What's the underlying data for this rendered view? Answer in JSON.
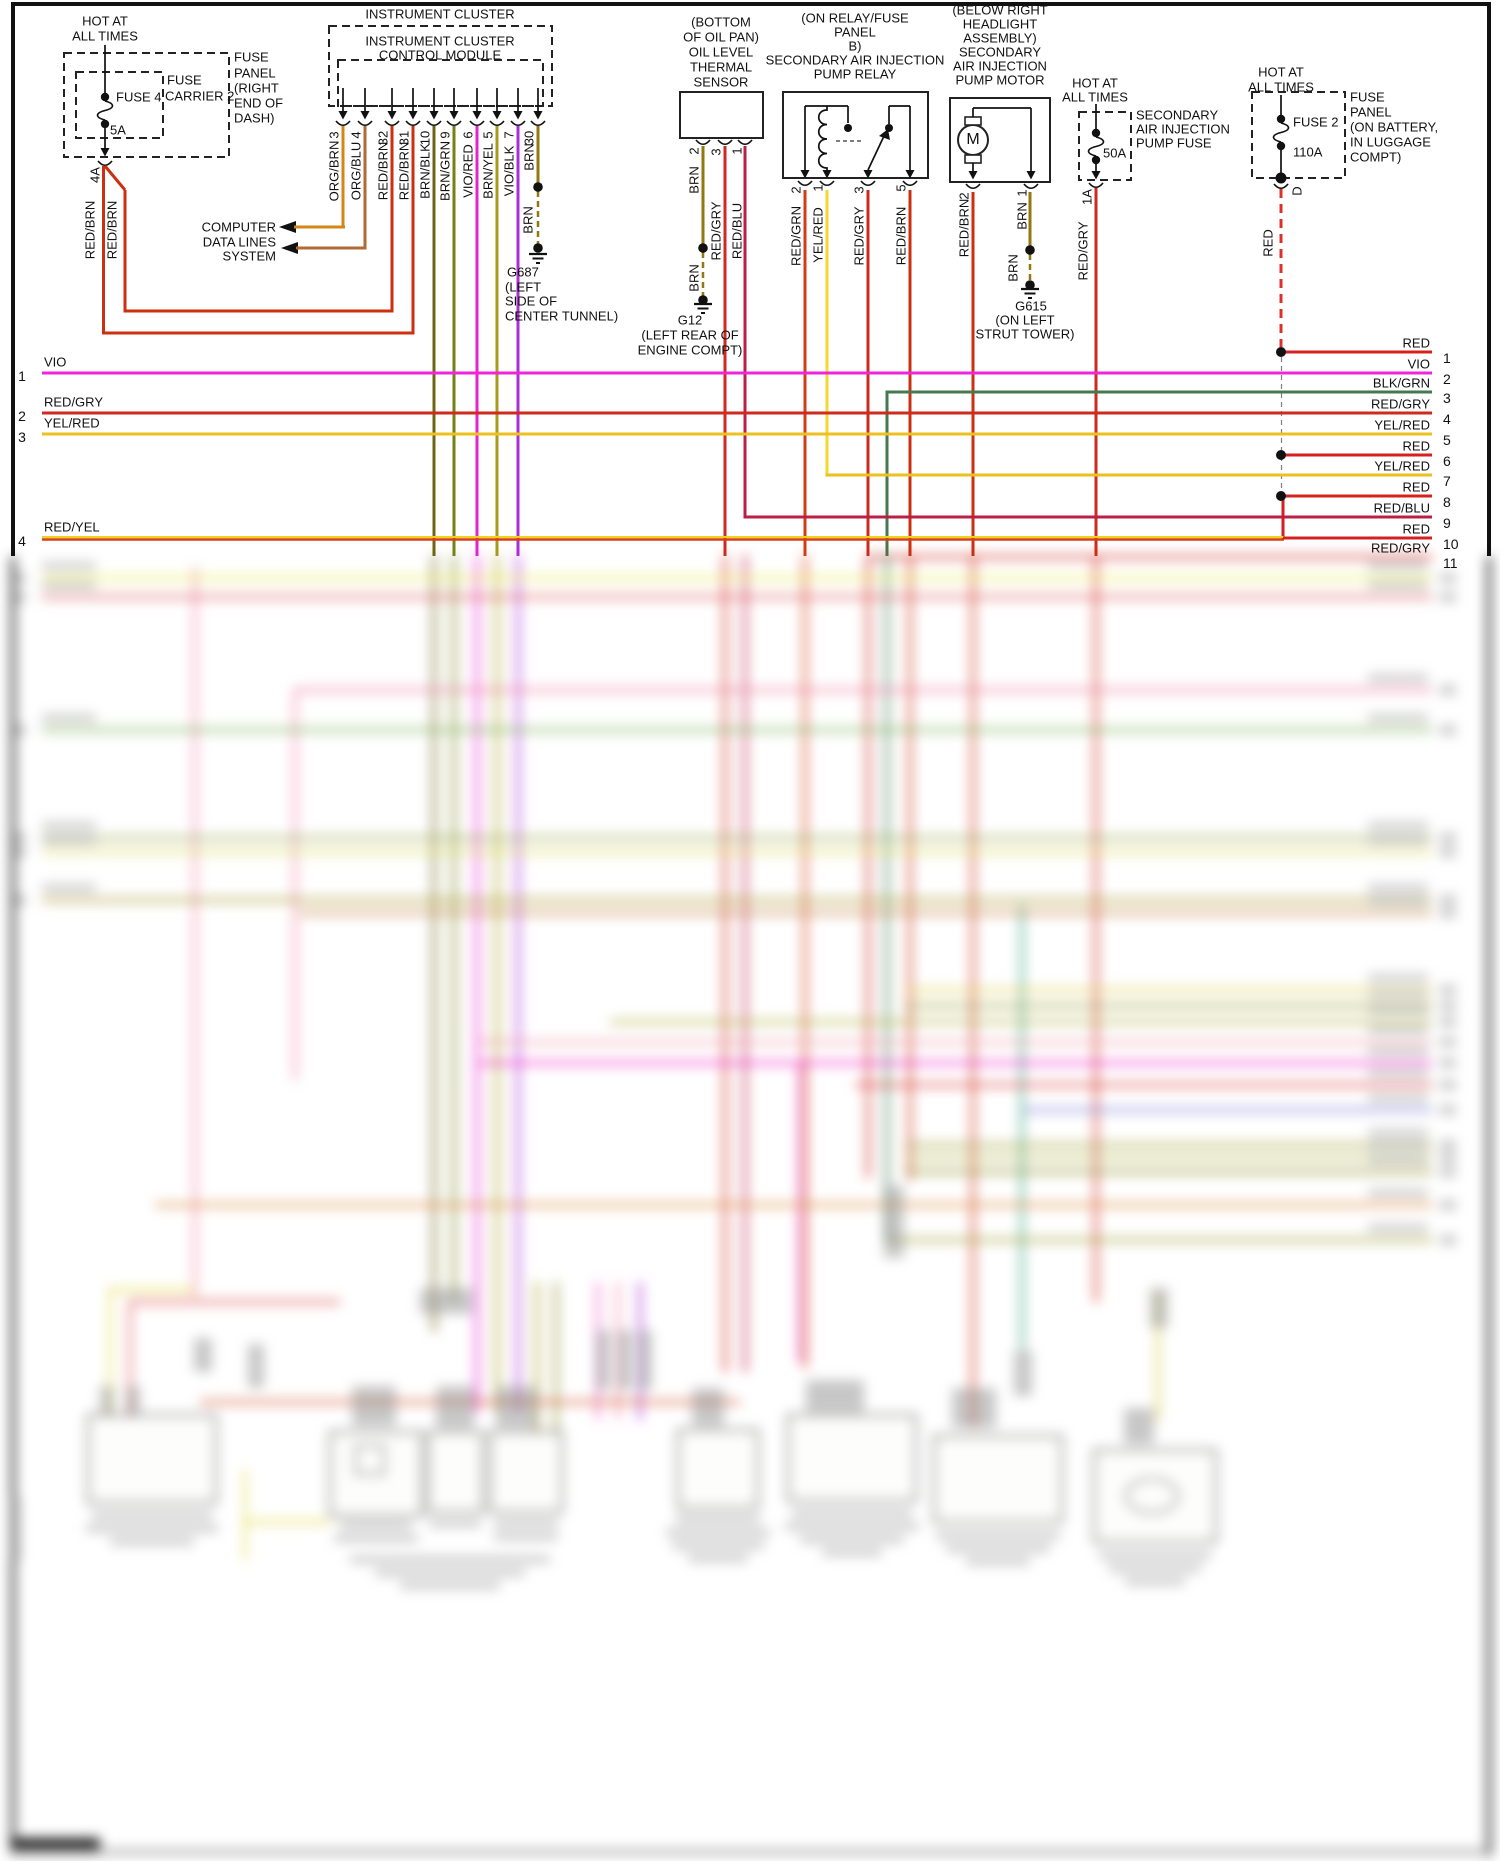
{
  "colors": {
    "black": "#111111",
    "red": "#d42020",
    "red_brn": "#cc3010",
    "red_gry": "#cf2a1e",
    "red_blu": "#bc1f44",
    "red_grn": "#d43c14",
    "org_brn": "#d28718",
    "org_blu": "#b06a32",
    "brn": "#937712",
    "brn_blk": "#6f6414",
    "brn_grn": "#778018",
    "brn_yel": "#a89b1c",
    "vio_red": "#e623ce",
    "vio_blk": "#ab2fd4",
    "vio": "#f024d8",
    "yel_red": "#ecc01e",
    "yel_red_bright": "#f2da2e",
    "blk_grn": "#44784e",
    "red_dash": "#e03028",
    "red_yel_yellow": "#f0d020",
    "red_yel_red": "#d84010",
    "thin_dash": "#808080"
  },
  "fuse4": {
    "hot": [
      "HOT AT",
      "ALL TIMES"
    ],
    "name": "FUSE 4",
    "amps": "5A",
    "carrier": [
      "FUSE",
      "CARRIER 2"
    ],
    "panel": [
      "FUSE",
      "PANEL",
      "(RIGHT",
      "END OF",
      "DASH)"
    ],
    "pin": "4A",
    "wires": [
      "RED/BRN",
      "RED/BRN"
    ]
  },
  "cluster": {
    "title": "INSTRUMENT CLUSTER",
    "module": [
      "INSTRUMENT CLUSTER",
      "CONTROL MODULE"
    ],
    "pins": [
      {
        "num": "3",
        "color": "ORG/BRN"
      },
      {
        "num": "4",
        "color": "ORG/BLU"
      },
      {
        "num": "32",
        "color": "RED/BRN"
      },
      {
        "num": "31",
        "color": "RED/BRN"
      },
      {
        "num": "10",
        "color": "BRN/BLK"
      },
      {
        "num": "9",
        "color": "BRN/GRN"
      },
      {
        "num": "6",
        "color": "VIO/RED"
      },
      {
        "num": "5",
        "color": "BRN/YEL"
      },
      {
        "num": "7",
        "color": "VIO/BLK"
      },
      {
        "num": "30",
        "color": "BRN"
      }
    ]
  },
  "computer": {
    "lines": [
      "COMPUTER",
      "DATA LINES",
      "SYSTEM"
    ]
  },
  "g687": {
    "wire": "BRN",
    "lines": [
      "G687",
      "(LEFT",
      "SIDE OF",
      "CENTER TUNNEL)"
    ]
  },
  "sensor": {
    "title": [
      "(BOTTOM",
      "OF OIL PAN)",
      "OIL LEVEL",
      "THERMAL",
      "SENSOR"
    ],
    "pins": [
      {
        "num": "2",
        "color": "BRN"
      },
      {
        "num": "3",
        "color": "RED/GRY"
      },
      {
        "num": "1",
        "color": "RED/BLU"
      }
    ],
    "ground_wire": "BRN",
    "ground": [
      "G12",
      "(LEFT REAR OF",
      "ENGINE COMPT)"
    ]
  },
  "relay": {
    "title": [
      "(ON RELAY/FUSE",
      "PANEL",
      "B)",
      "SECONDARY AIR INJECTION",
      "PUMP RELAY"
    ],
    "pins": [
      {
        "num": "2",
        "color": "RED/GRN"
      },
      {
        "num": "1",
        "color": "YEL/RED"
      },
      {
        "num": "3",
        "color": "RED/GRY"
      },
      {
        "num": "5",
        "color": "RED/BRN"
      }
    ]
  },
  "motor": {
    "title": [
      "(BELOW RIGHT",
      "HEADLIGHT",
      "ASSEMBLY)",
      "SECONDARY",
      "AIR INJECTION",
      "PUMP MOTOR"
    ],
    "symbol": "M",
    "pins": [
      {
        "num": "2",
        "color": "RED/BRN"
      },
      {
        "num": "1",
        "color": "BRN"
      }
    ],
    "ground_wire": "BRN",
    "ground": [
      "G615",
      "(ON LEFT",
      "STRUT TOWER)"
    ]
  },
  "fuse50": {
    "hot": [
      "HOT AT",
      "ALL TIMES"
    ],
    "amps": "50A",
    "label": [
      "SECONDARY",
      "AIR INJECTION",
      "PUMP FUSE"
    ],
    "pin": "1A",
    "wire": "RED/GRY"
  },
  "fuse2": {
    "hot": [
      "HOT AT",
      "ALL TIMES"
    ],
    "name": "FUSE 2",
    "amps": "110A",
    "panel": [
      "FUSE",
      "PANEL",
      "(ON BATTERY,",
      "IN LUGGAGE",
      "COMPT)"
    ],
    "pin": "D",
    "wire": "RED"
  },
  "left_rows": [
    {
      "num": "1",
      "label": "VIO"
    },
    {
      "num": "2",
      "label": "RED/GRY"
    },
    {
      "num": "3",
      "label": "YEL/RED"
    },
    {
      "num": "4",
      "label": "RED/YEL"
    }
  ],
  "right_rows": [
    {
      "num": "1",
      "label": "RED"
    },
    {
      "num": "2",
      "label": "VIO"
    },
    {
      "num": "3",
      "label": "BLK/GRN"
    },
    {
      "num": "4",
      "label": "RED/GRY"
    },
    {
      "num": "5",
      "label": "YEL/RED"
    },
    {
      "num": "6",
      "label": "RED"
    },
    {
      "num": "7",
      "label": "YEL/RED"
    },
    {
      "num": "8",
      "label": "RED"
    },
    {
      "num": "9",
      "label": "RED/BLU"
    },
    {
      "num": "10",
      "label": "RED"
    },
    {
      "num": "11",
      "label": "RED/GRY"
    }
  ]
}
